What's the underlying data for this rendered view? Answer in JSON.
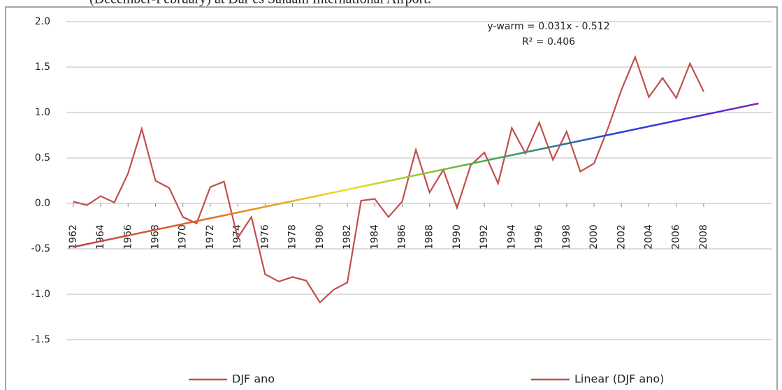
{
  "chart_data": {
    "type": "line",
    "caption": "(December-February) at Dar es Salaam International Airport.",
    "x": [
      1962,
      1963,
      1964,
      1965,
      1966,
      1967,
      1968,
      1969,
      1970,
      1971,
      1972,
      1973,
      1974,
      1975,
      1976,
      1977,
      1978,
      1979,
      1980,
      1981,
      1982,
      1983,
      1984,
      1985,
      1986,
      1987,
      1988,
      1989,
      1990,
      1991,
      1992,
      1993,
      1994,
      1995,
      1996,
      1997,
      1998,
      1999,
      2000,
      2001,
      2002,
      2003,
      2004,
      2005,
      2006,
      2007,
      2008
    ],
    "series": [
      {
        "name": "DJF ano",
        "color": "#c0504d",
        "values": [
          0.02,
          -0.02,
          0.08,
          0.01,
          0.33,
          0.82,
          0.25,
          0.17,
          -0.15,
          -0.22,
          0.18,
          0.24,
          -0.38,
          -0.15,
          -0.78,
          -0.86,
          -0.81,
          -0.85,
          -1.09,
          -0.95,
          -0.87,
          0.03,
          0.05,
          -0.15,
          0.02,
          0.59,
          0.12,
          0.37,
          -0.05,
          0.42,
          0.56,
          0.22,
          0.83,
          0.55,
          0.89,
          0.48,
          0.79,
          0.35,
          0.44,
          0.82,
          1.25,
          1.61,
          1.17,
          1.38,
          1.16,
          1.54,
          1.23
        ]
      }
    ],
    "trendline": {
      "name": "Linear (DJF ano)",
      "color": "#c0504d",
      "x": [
        1962,
        2012
      ],
      "values": [
        -0.48,
        1.1
      ],
      "gradient": [
        "#c0404d",
        "#e07020",
        "#f0e020",
        "#40b040",
        "#2040e0",
        "#8020c0"
      ]
    },
    "annotations": [
      "y-warm = 0.031x - 0.512",
      "R² = 0.406"
    ],
    "xlim": [
      1961.5,
      2013
    ],
    "xticks": [
      1962,
      1964,
      1966,
      1968,
      1970,
      1972,
      1974,
      1976,
      1978,
      1980,
      1982,
      1984,
      1986,
      1988,
      1990,
      1992,
      1994,
      1996,
      1998,
      2000,
      2002,
      2004,
      2006,
      2008
    ],
    "ylim": [
      -1.5,
      2.0
    ],
    "yticks": [
      {
        "value": 2.0,
        "label": "2.0"
      },
      {
        "value": 1.5,
        "label": "1.5"
      },
      {
        "value": 1.0,
        "label": "1.0"
      },
      {
        "value": 0.5,
        "label": "0.5"
      },
      {
        "value": 0,
        "label": "0.0"
      },
      {
        "value": -0.5,
        "label": "-0.5"
      },
      {
        "value": -1.0,
        "label": "-1.0"
      },
      {
        "value": -1.5,
        "label": "-1.5"
      }
    ],
    "grid": true
  }
}
